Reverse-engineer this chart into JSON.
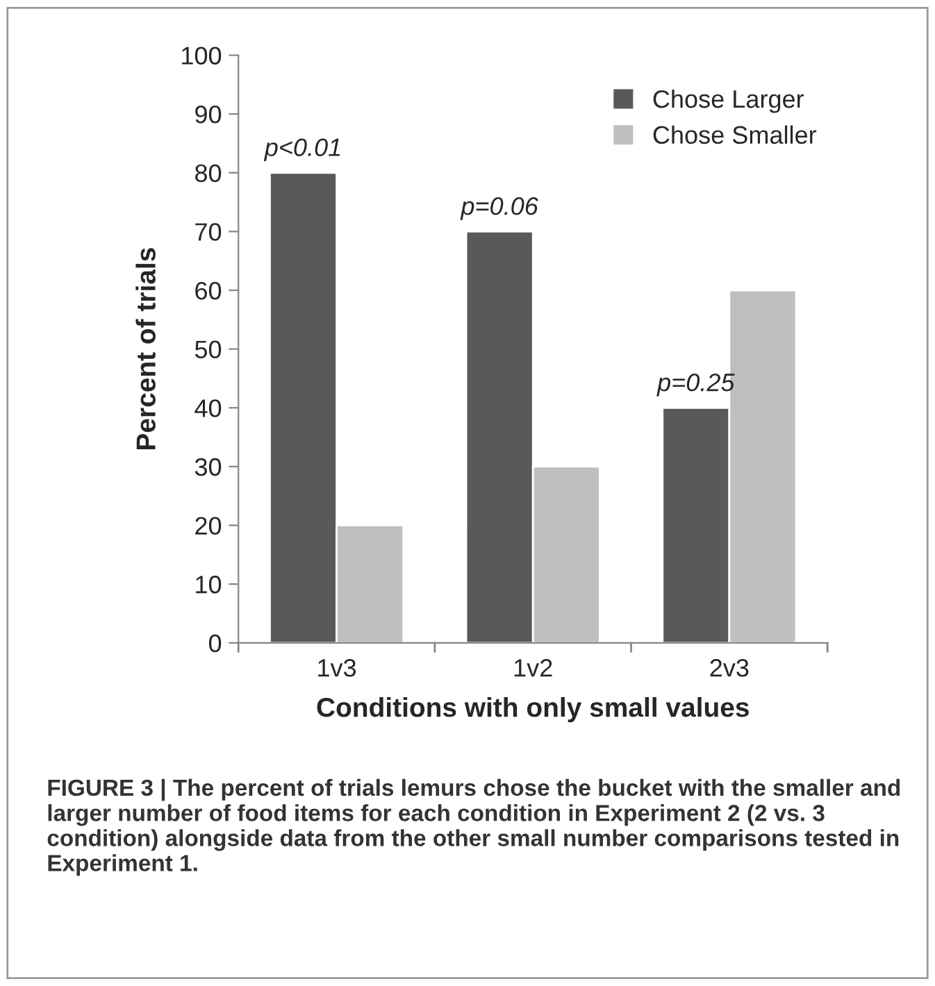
{
  "chart_data": {
    "type": "bar",
    "categories": [
      "1v3",
      "1v2",
      "2v3"
    ],
    "series": [
      {
        "name": "Chose Larger",
        "color": "#595959",
        "values": [
          80,
          70,
          40
        ]
      },
      {
        "name": "Chose Smaller",
        "color": "#bfbfbf",
        "values": [
          20,
          30,
          60
        ]
      }
    ],
    "xlabel": "Conditions with only small values",
    "ylabel": "Percent of trials",
    "ylim": [
      0,
      100
    ],
    "yticks": [
      0,
      10,
      20,
      30,
      40,
      50,
      60,
      70,
      80,
      90,
      100
    ],
    "legend": "top right",
    "annotations": [
      {
        "text": "p<0.01",
        "x": "1v3",
        "y": 80
      },
      {
        "text": "p=0.06",
        "x": "1v2",
        "y": 70
      },
      {
        "text": "p=0.25",
        "x": "2v3",
        "y": 40
      },
      "FIGURE 3 | The percent of trials lemurs chose the bucket with the smaller and larger number of food items for each condition in Experiment 2 (2 vs. 3 condition) alongside data from the other small number comparisons tested in Experiment 1."
    ]
  }
}
